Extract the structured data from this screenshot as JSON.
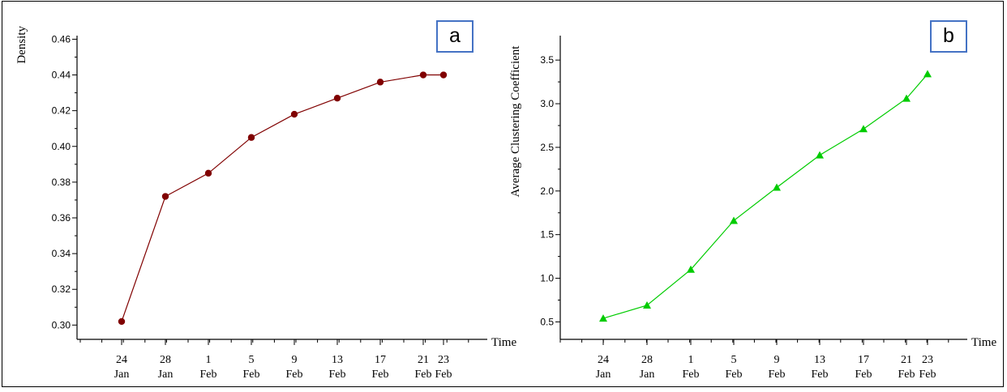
{
  "chart_data": [
    {
      "type": "line",
      "panel_label": "a",
      "ylabel": "Density",
      "xlabel": "Time",
      "categories": [
        [
          "24",
          "Jan"
        ],
        [
          "28",
          "Jan"
        ],
        [
          "1",
          "Feb"
        ],
        [
          "5",
          "Feb"
        ],
        [
          "9",
          "Feb"
        ],
        [
          "13",
          "Feb"
        ],
        [
          "17",
          "Feb"
        ],
        [
          "21",
          "Feb"
        ],
        [
          "23",
          "Feb"
        ]
      ],
      "x_dates": [
        "24 Jan",
        "28 Jan",
        "1 Feb",
        "5 Feb",
        "9 Feb",
        "13 Feb",
        "17 Feb",
        "21 Feb",
        "23 Feb"
      ],
      "values": [
        0.302,
        0.372,
        0.385,
        0.405,
        0.418,
        0.427,
        0.436,
        0.44,
        0.44
      ],
      "yticks": [
        "0.30",
        "0.32",
        "0.34",
        "0.36",
        "0.38",
        "0.40",
        "0.42",
        "0.44",
        "0.46"
      ],
      "ylim": [
        0.292,
        0.462
      ],
      "marker": "circle",
      "color": "#800000",
      "grid": false
    },
    {
      "type": "line",
      "panel_label": "b",
      "ylabel": "Average Clustering Coefficient",
      "xlabel": "Time",
      "categories": [
        [
          "24",
          "Jan"
        ],
        [
          "28",
          "Jan"
        ],
        [
          "1",
          "Feb"
        ],
        [
          "5",
          "Feb"
        ],
        [
          "9",
          "Feb"
        ],
        [
          "13",
          "Feb"
        ],
        [
          "17",
          "Feb"
        ],
        [
          "21",
          "Feb"
        ],
        [
          "23",
          "Feb"
        ]
      ],
      "x_dates": [
        "24 Jan",
        "28 Jan",
        "1 Feb",
        "5 Feb",
        "9 Feb",
        "13 Feb",
        "17 Feb",
        "21 Feb",
        "23 Feb"
      ],
      "values": [
        0.54,
        0.69,
        1.1,
        1.66,
        2.04,
        2.41,
        2.71,
        3.06,
        3.34
      ],
      "yticks": [
        "0.5",
        "1.0",
        "1.5",
        "2.0",
        "2.5",
        "3.0",
        "3.5"
      ],
      "ylim": [
        0.3,
        3.78
      ],
      "marker": "triangle",
      "color": "#00cc00",
      "grid": false
    }
  ]
}
